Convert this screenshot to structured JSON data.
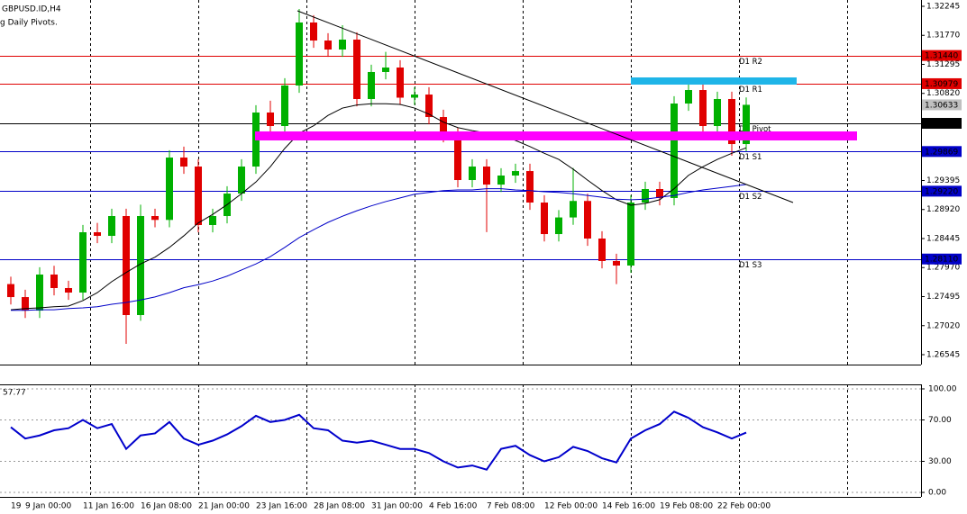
{
  "chart_data": [
    {
      "type": "candlestick",
      "title": "GBPUSD.ID,H4",
      "subtitle": "g Daily Pivots.",
      "categories": [
        "19",
        "9 Jan 00:00",
        null,
        null,
        null,
        "11 Jan 16:00",
        null,
        null,
        null,
        "16 Jan 08:00",
        null,
        null,
        null,
        "21 Jan 00:00",
        null,
        null,
        null,
        "23 Jan 16:00",
        null,
        null,
        null,
        "28 Jan 08:00",
        null,
        null,
        null,
        "31 Jan 00:00",
        null,
        null,
        null,
        "4 Feb 16:00",
        null,
        null,
        null,
        "7 Feb 08:00",
        null,
        null,
        null,
        "12 Feb 00:00",
        null,
        null,
        null,
        "14 Feb 16:00",
        null,
        null,
        null,
        "19 Feb 08:00",
        null,
        null,
        null,
        "22 Feb 00:00",
        null,
        null
      ],
      "open": [
        1.277,
        1.27487,
        1.27266,
        1.27856,
        1.27635,
        1.27561,
        1.28548,
        1.28489,
        1.28813,
        1.27193,
        1.28813,
        1.2875,
        1.2977,
        1.29623,
        1.28666,
        1.28813,
        1.29181,
        1.29623,
        1.30507,
        1.30286,
        1.30949,
        1.3198,
        1.31685,
        1.31538,
        1.317,
        1.30728,
        1.3117,
        1.31243,
        1.3075,
        1.30801,
        1.30433,
        1.30139,
        1.29402,
        1.29623,
        1.29328,
        1.29476,
        1.29549,
        1.29034,
        1.28518,
        1.2879,
        1.2906,
        1.28445,
        1.28077,
        1.28003,
        1.29034,
        1.29255,
        1.29108,
        1.30654,
        1.30875,
        1.30286,
        1.30728,
        1.29991
      ],
      "high": [
        1.2782,
        1.27607,
        1.27976,
        1.28,
        1.27755,
        1.28668,
        1.287,
        1.28933,
        1.28933,
        1.29,
        1.28933,
        1.2989,
        1.2995,
        1.29743,
        1.28933,
        1.29301,
        1.29743,
        1.30627,
        1.307,
        1.31069,
        1.322,
        1.321,
        1.31805,
        1.31936,
        1.3182,
        1.3129,
        1.315,
        1.31363,
        1.30921,
        1.30921,
        1.30553,
        1.30259,
        1.29743,
        1.29743,
        1.29596,
        1.29669,
        1.29669,
        1.29154,
        1.2891,
        1.296,
        1.2918,
        1.28565,
        1.28197,
        1.29154,
        1.29375,
        1.29375,
        1.30774,
        1.3107,
        1.30995,
        1.30848,
        1.30848,
        1.30753
      ],
      "low": [
        1.27367,
        1.27146,
        1.27146,
        1.27515,
        1.27441,
        1.27441,
        1.28369,
        1.28369,
        1.26721,
        1.271,
        1.2863,
        1.2863,
        1.29503,
        1.28546,
        1.28546,
        1.28693,
        1.29061,
        1.29503,
        1.30166,
        1.30166,
        1.30829,
        1.31565,
        1.31418,
        1.31418,
        1.30608,
        1.30608,
        1.3105,
        1.3063,
        1.3063,
        1.30313,
        1.30019,
        1.29282,
        1.29282,
        1.2855,
        1.29208,
        1.29356,
        1.28914,
        1.28398,
        1.28398,
        1.2867,
        1.28325,
        1.27957,
        1.277,
        1.27883,
        1.28914,
        1.28988,
        1.28988,
        1.30534,
        1.30166,
        1.30166,
        1.298,
        1.29871
      ],
      "close": [
        1.27487,
        1.27266,
        1.27856,
        1.27635,
        1.27561,
        1.28548,
        1.28489,
        1.28813,
        1.27193,
        1.28813,
        1.2875,
        1.2977,
        1.29623,
        1.28666,
        1.28813,
        1.29181,
        1.29623,
        1.30507,
        1.30286,
        1.30949,
        1.3198,
        1.31685,
        1.31538,
        1.317,
        1.30728,
        1.3117,
        1.31243,
        1.3075,
        1.30801,
        1.30433,
        1.30139,
        1.29402,
        1.29623,
        1.29328,
        1.29476,
        1.29549,
        1.29034,
        1.28518,
        1.2879,
        1.2906,
        1.28445,
        1.28077,
        1.28003,
        1.29034,
        1.29255,
        1.29108,
        1.30654,
        1.30875,
        1.30286,
        1.30728,
        1.29991,
        1.30633
      ],
      "up_color": "#00b000",
      "down_color": "#e00000",
      "series": [
        {
          "color": "#000000",
          "values": [
            1.2728,
            1.273,
            1.2731,
            1.2733,
            1.2734,
            1.2743,
            1.2756,
            1.2774,
            1.2789,
            1.2803,
            1.2814,
            1.283,
            1.2849,
            1.287,
            1.2884,
            1.29,
            1.2918,
            1.2937,
            1.2962,
            1.2992,
            1.3017,
            1.3029,
            1.3046,
            1.3058,
            1.3063,
            1.3065,
            1.3065,
            1.3064,
            1.3058,
            1.3048,
            1.3035,
            1.3026,
            1.3021,
            1.3017,
            1.3014,
            1.3005,
            1.2995,
            1.2984,
            1.2974,
            1.2958,
            1.294,
            1.2923,
            1.2908,
            1.2899,
            1.2902,
            1.2908,
            1.2926,
            1.2948,
            1.2962,
            1.2974,
            1.2984,
            1.2993
          ]
        },
        {
          "color": "#0000c8",
          "values": [
            1.2727,
            1.2727,
            1.2728,
            1.2728,
            1.273,
            1.2731,
            1.2733,
            1.2737,
            1.274,
            1.2744,
            1.2749,
            1.2756,
            1.2764,
            1.2769,
            1.2775,
            1.2783,
            1.2793,
            1.2803,
            1.2815,
            1.283,
            1.2846,
            1.2859,
            1.2871,
            1.2881,
            1.289,
            1.2898,
            1.2905,
            1.2911,
            1.2917,
            1.292,
            1.2923,
            1.2924,
            1.2924,
            1.2926,
            1.2926,
            1.2924,
            1.2923,
            1.2921,
            1.292,
            1.2918,
            1.2915,
            1.2912,
            1.2909,
            1.2908,
            1.2909,
            1.2912,
            1.2915,
            1.292,
            1.2924,
            1.2927,
            1.293,
            1.2933
          ]
        }
      ],
      "ylim": [
        1.26383,
        1.32348
      ],
      "yticks": [
        1.32245,
        {
          "value": 1.3177,
          "label": "1.31770"
        },
        1.31295,
        {
          "value": 1.3082,
          "label": "1.30820"
        },
        1.29395,
        {
          "value": 1.2892,
          "label": "1.28920"
        },
        1.28445,
        {
          "value": 1.2797,
          "label": "1.27970"
        },
        1.27495,
        {
          "value": 1.2702,
          "label": "1.27020"
        },
        1.26545
      ],
      "levels": [
        {
          "name": "D1 R2",
          "value": 1.3144,
          "label": "1.31440",
          "color": "#e00000"
        },
        {
          "name": "D1 R1",
          "value": 1.30979,
          "label": "1.30979",
          "color": "#e00000"
        },
        {
          "name": "D1 Pivot",
          "value": 1.3033,
          "label": "1.30330",
          "color": "#000000"
        },
        {
          "name": "D1 S1",
          "value": 1.29869,
          "label": "1.29869",
          "color": "#0000c8"
        },
        {
          "name": "D1 S2",
          "value": 1.2922,
          "label": "1.29220",
          "color": "#0000c8"
        },
        {
          "name": "D1 S3",
          "value": 1.2811,
          "label": "1.28110",
          "color": "#0000c8"
        }
      ],
      "last_price": {
        "value": 1.30633,
        "label": "1.30633",
        "color": "#c0c0c0"
      }
    },
    {
      "type": "line",
      "color": "#0000cc",
      "values": [
        63,
        52,
        55,
        60,
        62,
        70,
        62,
        66,
        42,
        55,
        57,
        68,
        52,
        46,
        50,
        56,
        64,
        74,
        68,
        70,
        75,
        62,
        60,
        50,
        48,
        50,
        46,
        42,
        42,
        38,
        30,
        24,
        26,
        22,
        42,
        45,
        36,
        30,
        34,
        44,
        40,
        33,
        29,
        52,
        60,
        66,
        78,
        72,
        63,
        58,
        52,
        57.77
      ],
      "ylim": [
        -4.35,
        104.35
      ],
      "yticks": [
        {
          "value": 0,
          "label": "0.00"
        },
        {
          "value": 30,
          "label": "30.00"
        },
        {
          "value": 70,
          "label": "70.00"
        },
        {
          "value": 100,
          "label": "100.00"
        }
      ]
    }
  ]
}
